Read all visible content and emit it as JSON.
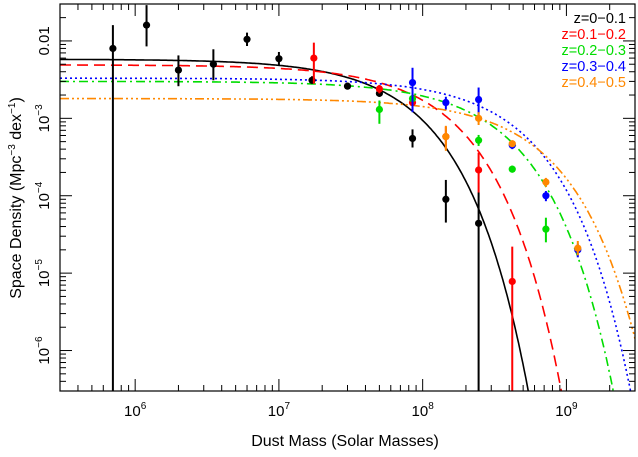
{
  "chart_data": {
    "type": "scatter",
    "xlabel": "Dust Mass (Solar Masses)",
    "ylabel_parts": [
      "Space Density (Mpc",
      "−3",
      " dex",
      "−1",
      ")"
    ],
    "x_scale": "log",
    "y_scale": "log",
    "xlim": [
      300000,
      3000000000
    ],
    "ylim": [
      3e-07,
      0.03
    ],
    "x_ticks": [
      {
        "value": 1000000,
        "base": "10",
        "exp": "6"
      },
      {
        "value": 10000000,
        "base": "10",
        "exp": "7"
      },
      {
        "value": 100000000,
        "base": "10",
        "exp": "8"
      },
      {
        "value": 1000000000,
        "base": "10",
        "exp": "9"
      }
    ],
    "y_ticks": [
      {
        "value": 0.01,
        "text": "0.01"
      },
      {
        "value": 0.001,
        "base": "10",
        "exp": "−3"
      },
      {
        "value": 0.0001,
        "base": "10",
        "exp": "−4"
      },
      {
        "value": 1e-05,
        "base": "10",
        "exp": "−5"
      },
      {
        "value": 1e-06,
        "base": "10",
        "exp": "−6"
      }
    ],
    "legend_position": "top-right",
    "grid": false,
    "series": [
      {
        "name": "z=0−0.1",
        "color": "#000000",
        "dash": "",
        "fit": {
          "phi_star": 0.0058,
          "m_star": 55000000,
          "alpha": 0.0
        },
        "points": [
          {
            "x": 700000,
            "y": 0.008,
            "ylo": 3e-07,
            "yhi": 0.016
          },
          {
            "x": 1200000,
            "y": 0.016,
            "ylo": 0.0085,
            "yhi": 0.029
          },
          {
            "x": 2000000,
            "y": 0.0042,
            "ylo": 0.0026,
            "yhi": 0.0065
          },
          {
            "x": 3500000,
            "y": 0.005,
            "ylo": 0.0031,
            "yhi": 0.0078
          },
          {
            "x": 6000000,
            "y": 0.0105,
            "ylo": 0.0086,
            "yhi": 0.0128
          },
          {
            "x": 10000000,
            "y": 0.0059,
            "ylo": 0.0048,
            "yhi": 0.0072
          },
          {
            "x": 17000000,
            "y": 0.0031,
            "ylo": 0.0028,
            "yhi": 0.0035
          },
          {
            "x": 30000000,
            "y": 0.0026,
            "ylo": 0.0024,
            "yhi": 0.0029
          },
          {
            "x": 50000000,
            "y": 0.0021,
            "ylo": 0.0019,
            "yhi": 0.0024
          },
          {
            "x": 85000000,
            "y": 0.00055,
            "ylo": 0.00042,
            "yhi": 0.00072
          },
          {
            "x": 145000000,
            "y": 9e-05,
            "ylo": 4.5e-05,
            "yhi": 0.00016
          },
          {
            "x": 245000000,
            "y": 4.4e-05,
            "ylo": 3e-07,
            "yhi": 0.00011
          }
        ]
      },
      {
        "name": "z=0.1−0.2",
        "color": "#ff0000",
        "dash": "11 6",
        "fit": {
          "phi_star": 0.0049,
          "m_star": 95000000,
          "alpha": 0.0
        },
        "points": [
          {
            "x": 17500000,
            "y": 0.006,
            "ylo": 0.0028,
            "yhi": 0.0095
          },
          {
            "x": 50000000,
            "y": 0.0024,
            "ylo": 0.0021,
            "yhi": 0.0027
          },
          {
            "x": 85000000,
            "y": 0.0016,
            "ylo": 0.0013,
            "yhi": 0.002
          },
          {
            "x": 145000000,
            "y": 0.00058,
            "ylo": 0.0004,
            "yhi": 0.00078
          },
          {
            "x": 245000000,
            "y": 0.000215,
            "ylo": 0.00011,
            "yhi": 0.00036
          },
          {
            "x": 420000000,
            "y": 7.8e-06,
            "ylo": 3e-07,
            "yhi": 2.2e-05
          }
        ]
      },
      {
        "name": "z=0.2−0.3",
        "color": "#00dd00",
        "dash": "9 4 2 4",
        "fit": {
          "phi_star": 0.003,
          "m_star": 230000000,
          "alpha": 0.0
        },
        "points": [
          {
            "x": 50000000,
            "y": 0.0013,
            "ylo": 0.00085,
            "yhi": 0.0017
          },
          {
            "x": 85000000,
            "y": 0.0018,
            "ylo": 0.0016,
            "yhi": 0.0021
          },
          {
            "x": 245000000,
            "y": 0.00052,
            "ylo": 0.00044,
            "yhi": 0.00061
          },
          {
            "x": 420000000,
            "y": 0.00022,
            "ylo": 0.0002,
            "yhi": 0.000245
          },
          {
            "x": 720000000,
            "y": 3.7e-05,
            "ylo": 2.5e-05,
            "yhi": 5.2e-05
          }
        ]
      },
      {
        "name": "z=0.3−0.4",
        "color": "#0000ff",
        "dash": "2 3",
        "fit": {
          "phi_star": 0.0033,
          "m_star": 300000000,
          "alpha": 0.0
        },
        "points": [
          {
            "x": 85000000,
            "y": 0.0029,
            "ylo": 0.0012,
            "yhi": 0.0045
          },
          {
            "x": 145000000,
            "y": 0.0016,
            "ylo": 0.0013,
            "yhi": 0.0019
          },
          {
            "x": 245000000,
            "y": 0.00175,
            "ylo": 0.0011,
            "yhi": 0.0025
          },
          {
            "x": 420000000,
            "y": 0.00045,
            "ylo": 0.0004,
            "yhi": 0.00051
          },
          {
            "x": 720000000,
            "y": 0.0001,
            "ylo": 8.5e-05,
            "yhi": 0.000115
          },
          {
            "x": 1200000000,
            "y": 2e-05,
            "ylo": 1.6e-05,
            "yhi": 2.4e-05
          }
        ]
      },
      {
        "name": "z=0.4−0.5",
        "color": "#ff8800",
        "dash": "9 3 2 3 2 3 2 3",
        "fit": {
          "phi_star": 0.0018,
          "m_star": 420000000,
          "alpha": 0.0
        },
        "points": [
          {
            "x": 145000000,
            "y": 0.00058,
            "ylo": 0.00038,
            "yhi": 0.0008
          },
          {
            "x": 245000000,
            "y": 0.001,
            "ylo": 0.00082,
            "yhi": 0.0012
          },
          {
            "x": 420000000,
            "y": 0.00047,
            "ylo": 0.00043,
            "yhi": 0.00052
          },
          {
            "x": 720000000,
            "y": 0.00015,
            "ylo": 0.00013,
            "yhi": 0.00017
          },
          {
            "x": 1200000000,
            "y": 2.1e-05,
            "ylo": 1.7e-05,
            "yhi": 2.6e-05
          }
        ]
      }
    ]
  }
}
